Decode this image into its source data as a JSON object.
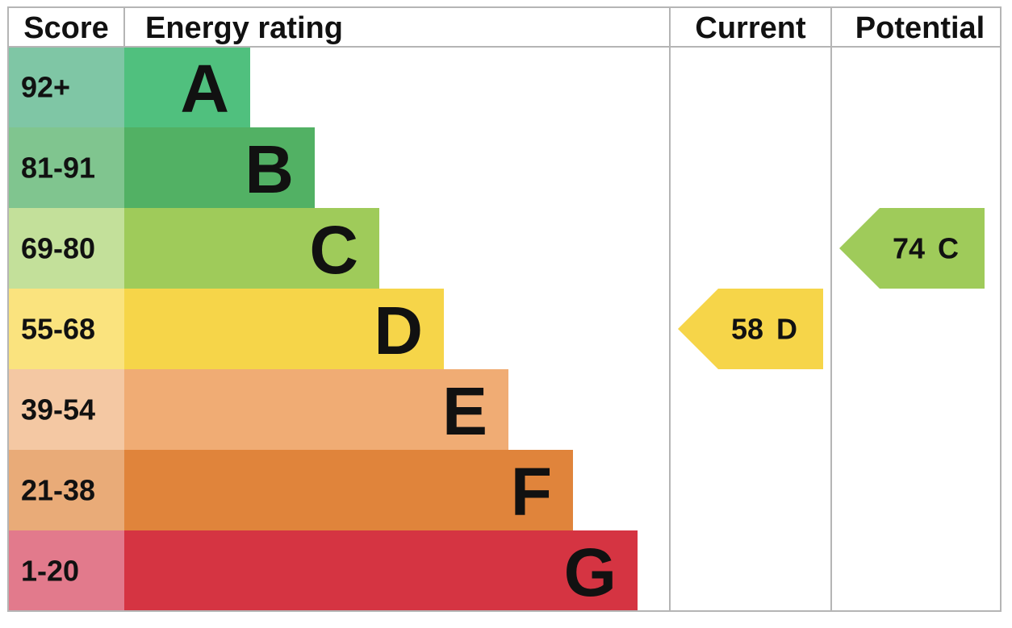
{
  "header": {
    "score": "Score",
    "rating": "Energy rating",
    "current": "Current",
    "potential": "Potential"
  },
  "bands": [
    {
      "range": "92+",
      "letter": "A",
      "color": "#50c07e",
      "score_color": "#7fc6a5"
    },
    {
      "range": "81-91",
      "letter": "B",
      "color": "#52b164",
      "score_color": "#80c58f"
    },
    {
      "range": "69-80",
      "letter": "C",
      "color": "#9fcb5a",
      "score_color": "#c3e09a"
    },
    {
      "range": "55-68",
      "letter": "D",
      "color": "#f6d549",
      "score_color": "#fae37e"
    },
    {
      "range": "39-54",
      "letter": "E",
      "color": "#f0ac74",
      "score_color": "#f4c8a3"
    },
    {
      "range": "21-38",
      "letter": "F",
      "color": "#e0843b",
      "score_color": "#e9ab78"
    },
    {
      "range": "1-20",
      "letter": "G",
      "color": "#d53442",
      "score_color": "#e27a8c"
    }
  ],
  "current": {
    "score": 58,
    "rating": "D"
  },
  "potential": {
    "score": 74,
    "rating": "C"
  }
}
